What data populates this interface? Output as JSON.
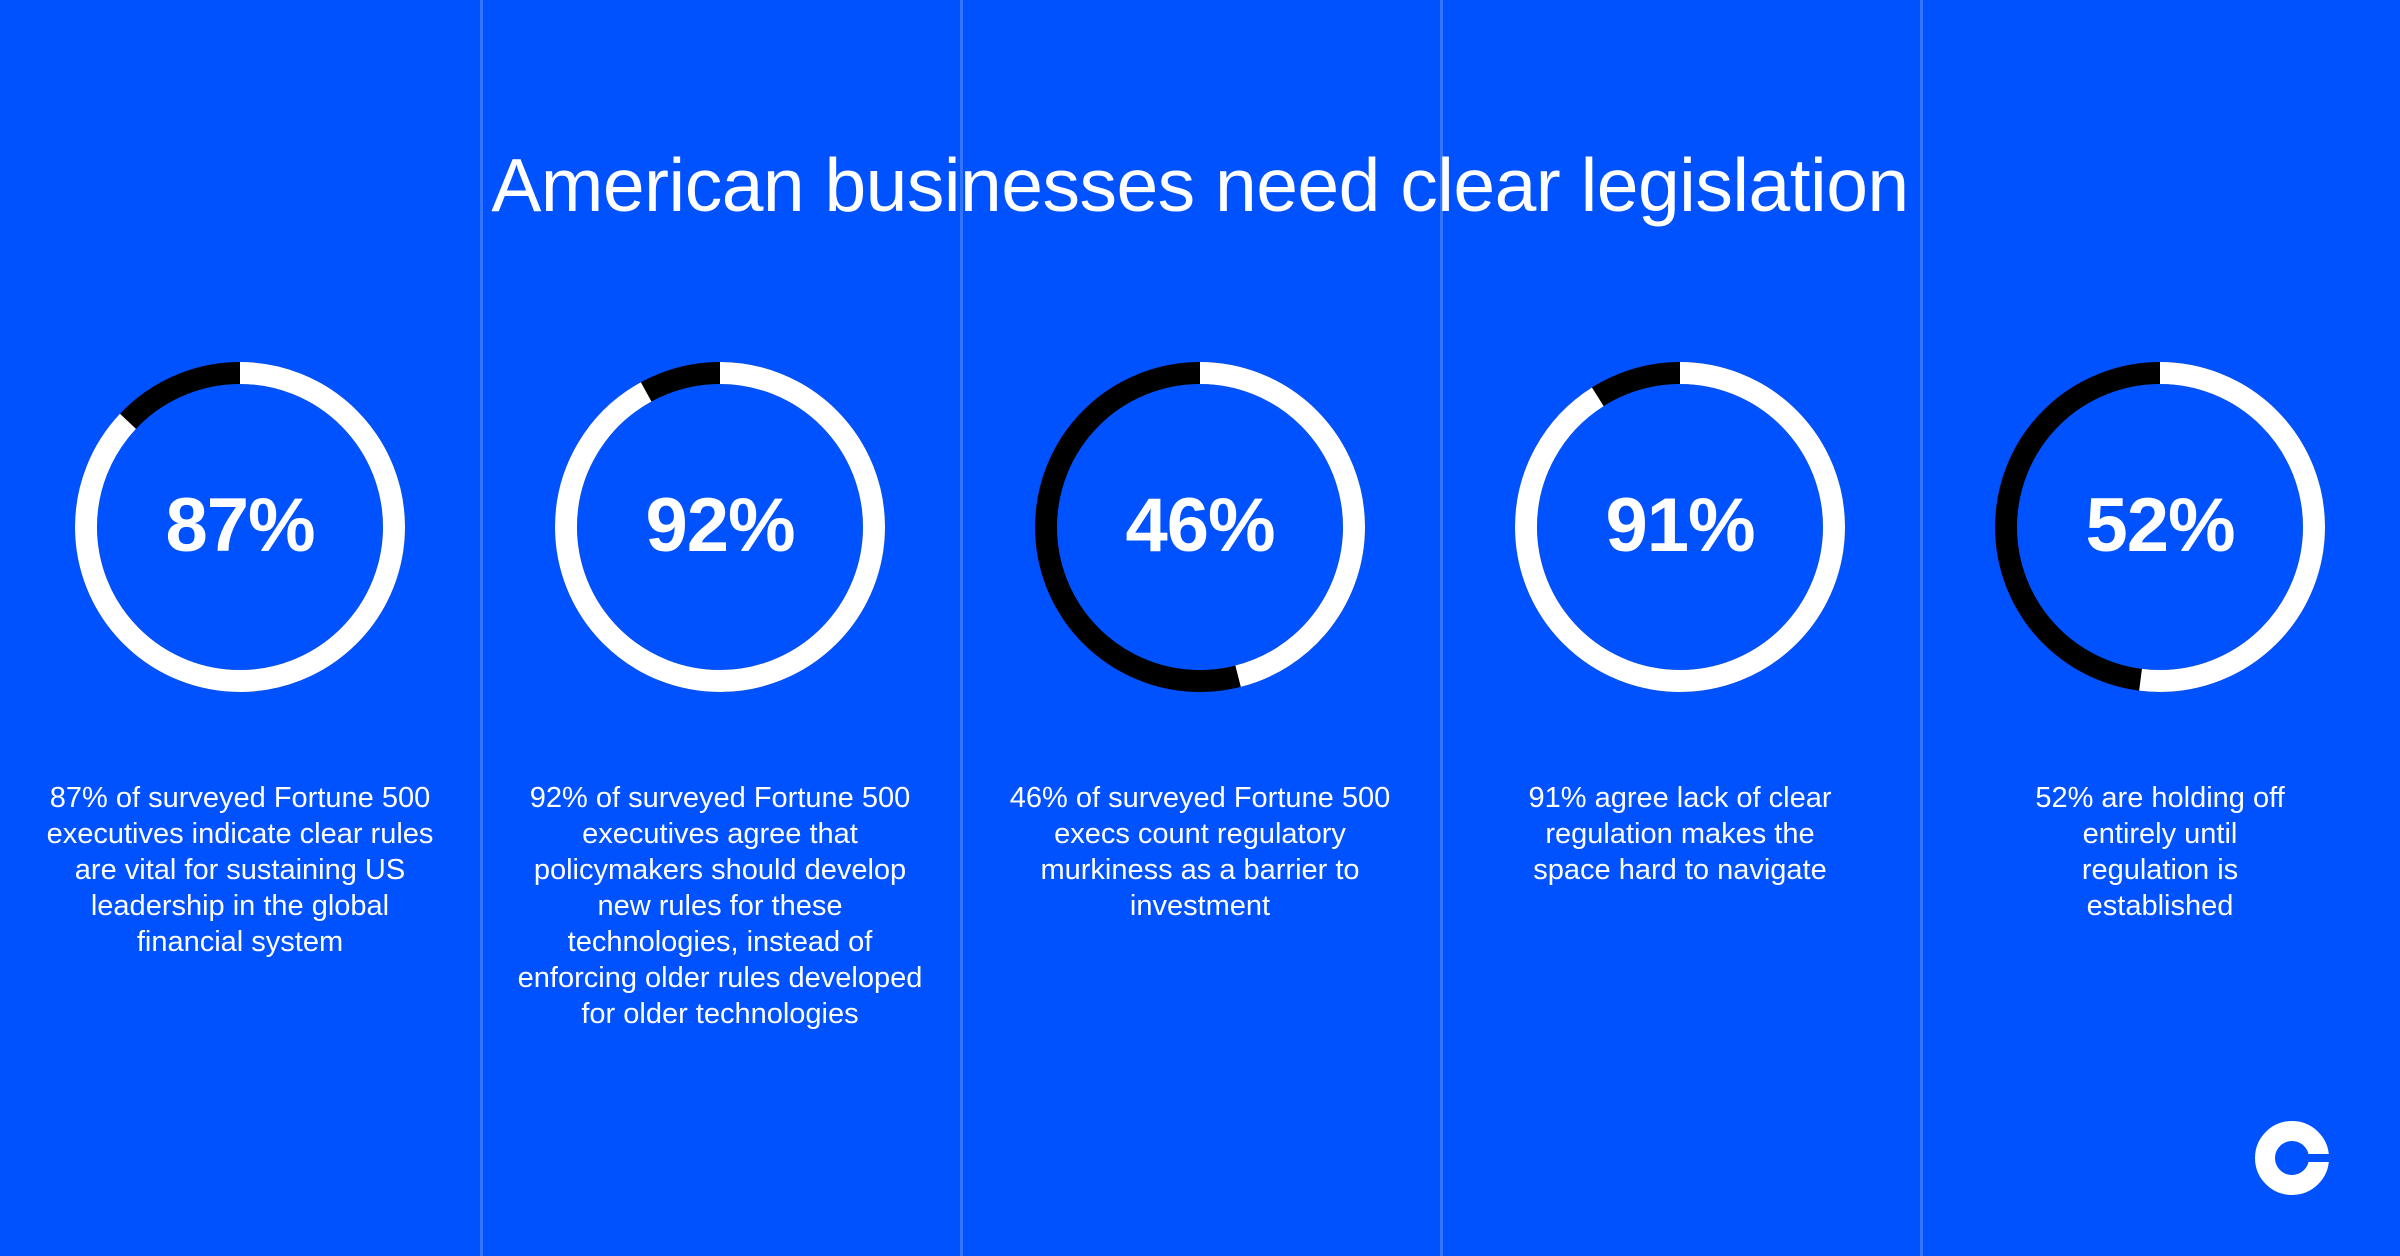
{
  "header": {
    "title": "American businesses need clear legislation"
  },
  "colors": {
    "background": "#0052ff",
    "divider": "#3375ff",
    "ring_filled": "#ffffff",
    "ring_remainder": "#000000",
    "text": "#ffffff"
  },
  "stats": [
    {
      "value": 87,
      "label": "87%",
      "description": "87% of surveyed Fortune 500 executives indicate clear rules are vital for sustaining US leadership in the global financial system"
    },
    {
      "value": 92,
      "label": "92%",
      "description": "92% of surveyed Fortune 500 executives agree that policymakers should develop new rules for these technologies, instead of enforcing older rules developed for older technologies"
    },
    {
      "value": 46,
      "label": "46%",
      "description": "46% of surveyed Fortune 500 execs count regulatory murkiness as a barrier to investment"
    },
    {
      "value": 91,
      "label": "91%",
      "description": "91% agree lack of clear regulation makes the space hard to navigate"
    },
    {
      "value": 52,
      "label": "52%",
      "description": "52% are holding off entirely until regulation is established"
    }
  ],
  "logo": {
    "icon": "coinbase-logo-icon"
  },
  "chart_data": {
    "type": "pie",
    "subtype": "donut-rings",
    "title": "American businesses need clear legislation",
    "categories": [
      "Clear rules vital for US leadership",
      "Policymakers should develop new rules",
      "Regulatory murkiness a barrier to investment",
      "Lack of clear regulation makes space hard to navigate",
      "Holding off until regulation established"
    ],
    "values": [
      87,
      92,
      46,
      91,
      52
    ],
    "unit": "%",
    "series": [
      {
        "name": "Agree (white)",
        "values": [
          87,
          92,
          46,
          91,
          52
        ]
      },
      {
        "name": "Remainder (black)",
        "values": [
          13,
          8,
          54,
          9,
          48
        ]
      }
    ],
    "xlabel": "",
    "ylabel": "",
    "ylim": [
      0,
      100
    ],
    "grid": false,
    "legend": "none"
  }
}
